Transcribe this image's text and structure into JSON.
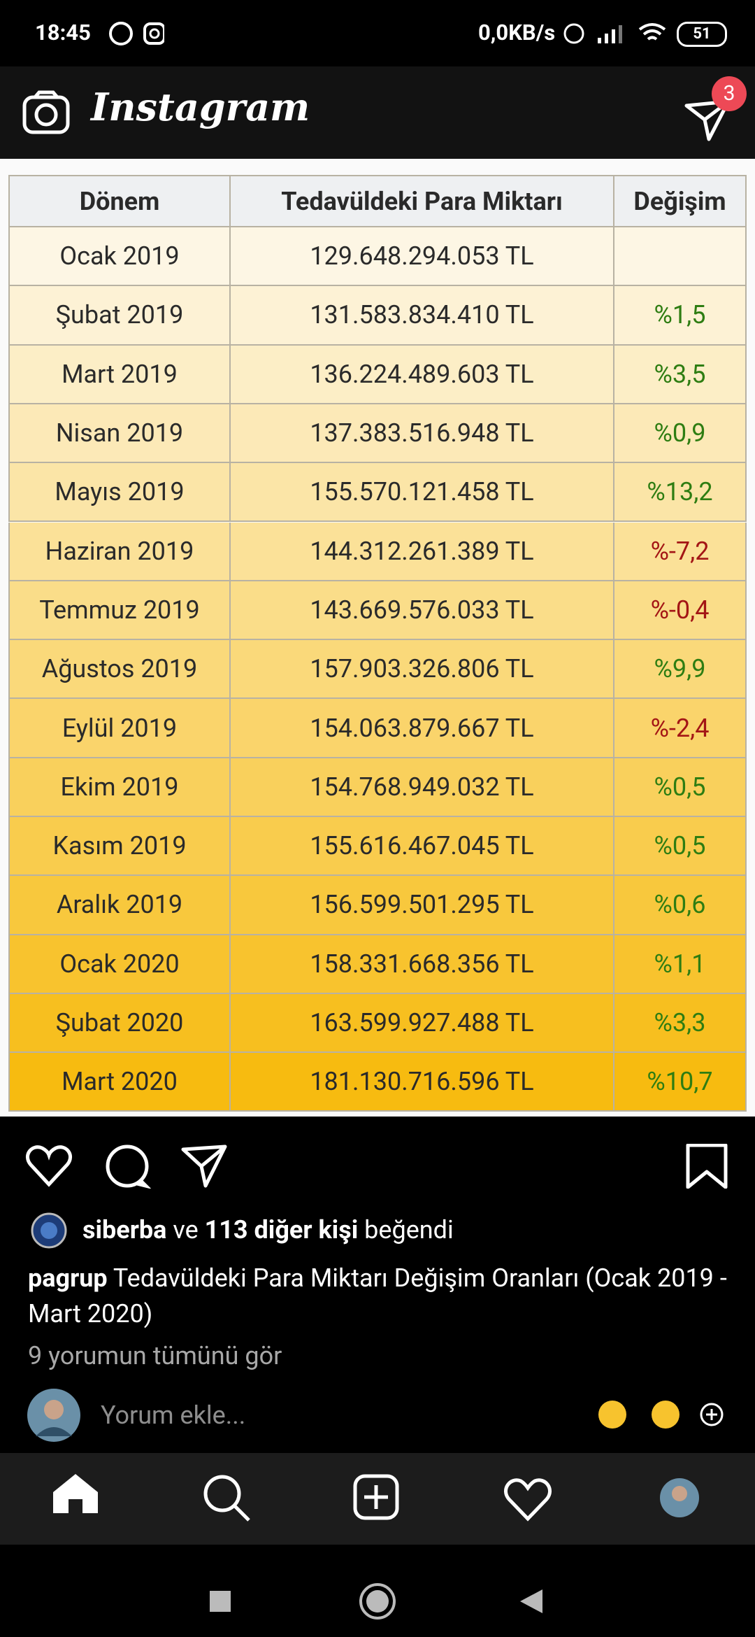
{
  "status_bar": {
    "time": "18:45",
    "net_speed": "0,0KB/s",
    "battery": "51"
  },
  "app_bar": {
    "title": "Instagram",
    "direct_badge": "3"
  },
  "table": {
    "header": [
      "Dönem",
      "Tedavüldeki Para Miktarı",
      "Değişim"
    ],
    "rows": [
      [
        "Ocak 2019",
        "129.648.294.053 TL",
        null
      ],
      [
        "Şubat 2019",
        "131.583.834.410 TL",
        "%1,5"
      ],
      [
        "Mart 2019",
        "136.224.489.603 TL",
        "%3,5"
      ],
      [
        "Nisan 2019",
        "137.383.516.948 TL",
        "%0,9"
      ],
      [
        "Mayıs 2019",
        "155.570.121.458 TL",
        "%13,2"
      ],
      [
        "Haziran 2019",
        "144.312.261.389 TL",
        "%-7,2"
      ],
      [
        "Temmuz 2019",
        "143.669.576.033 TL",
        "%-0,4"
      ],
      [
        "Ağustos 2019",
        "157.903.326.806 TL",
        "%9,9"
      ],
      [
        "Eylül 2019",
        "154.063.879.667 TL",
        "%-2,4"
      ],
      [
        "Ekim 2019",
        "154.768.949.032 TL",
        "%0,5"
      ],
      [
        "Kasım 2019",
        "155.616.467.045 TL",
        "%0,5"
      ],
      [
        "Aralık 2019",
        "156.599.501.295 TL",
        "%0,6"
      ],
      [
        "Ocak 2020",
        "158.331.668.356 TL",
        "%1,1"
      ],
      [
        "Şubat 2020",
        "163.599.927.488 TL",
        "%3,3"
      ],
      [
        "Mart 2020",
        "181.130.716.596 TL",
        "%10,7"
      ]
    ],
    "up_color": "#2e7d12",
    "down_color": "#a31515"
  },
  "likes": {
    "user": "siberba",
    "connector": "ve",
    "others": "113 diğer kişi",
    "suffix": "beğendi"
  },
  "caption": {
    "user": "pagrup",
    "text": "Tedavüldeki Para Miktarı Değişim Oranları (Ocak 2019 - Mart 2020)"
  },
  "comments_link": "9 yorumun tümünü gör",
  "comment_placeholder": "Yorum ekle..."
}
